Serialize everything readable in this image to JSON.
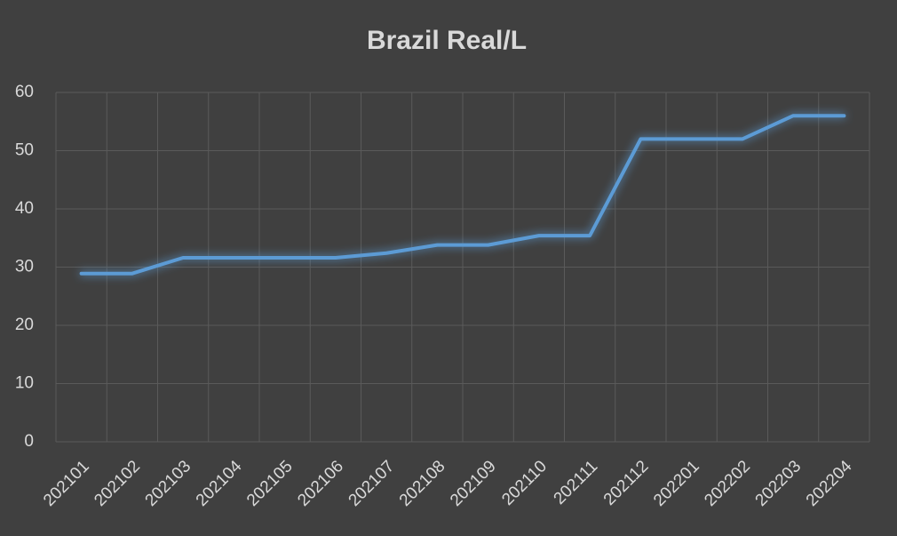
{
  "chart_data": {
    "type": "line",
    "title": "Brazil Real/L",
    "categories": [
      "202101",
      "202102",
      "202103",
      "202104",
      "202105",
      "202106",
      "202107",
      "202108",
      "202109",
      "202110",
      "202111",
      "202112",
      "202201",
      "202202",
      "202203",
      "202204"
    ],
    "series": [
      {
        "name": "Brazil Real/L",
        "color": "#5b9bd5",
        "values": [
          28.9,
          28.9,
          31.6,
          31.6,
          31.6,
          31.6,
          32.4,
          33.8,
          33.8,
          35.4,
          35.4,
          52,
          52,
          52,
          56,
          56
        ]
      }
    ],
    "ylim": [
      0,
      60
    ],
    "yticks": [
      0,
      10,
      20,
      30,
      40,
      50,
      60
    ],
    "grid": true,
    "legend": false
  }
}
